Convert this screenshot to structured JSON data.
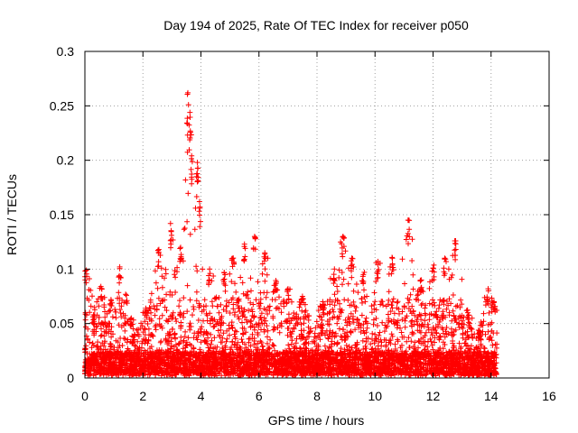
{
  "chart_data": {
    "type": "scatter",
    "title": "Day 194 of 2025, Rate Of TEC Index for receiver p050",
    "xlabel": "GPS time / hours",
    "ylabel": "ROTI / TECUs",
    "xlim": [
      0,
      16
    ],
    "ylim": [
      0,
      0.3
    ],
    "x_ticks": [
      "0",
      "2",
      "4",
      "6",
      "8",
      "10",
      "12",
      "14",
      "16"
    ],
    "y_ticks": [
      "0",
      "0.05",
      "0.1",
      "0.15",
      "0.2",
      "0.25",
      "0.3"
    ],
    "grid": true,
    "marker": "+",
    "color": "#ff0000",
    "data_extent_hours": [
      0,
      14.2
    ],
    "peaks": [
      {
        "x": 0.05,
        "y": 0.099
      },
      {
        "x": 0.3,
        "y": 0.058
      },
      {
        "x": 0.55,
        "y": 0.084
      },
      {
        "x": 0.9,
        "y": 0.072
      },
      {
        "x": 1.2,
        "y": 0.102
      },
      {
        "x": 1.6,
        "y": 0.055
      },
      {
        "x": 2.1,
        "y": 0.064
      },
      {
        "x": 2.55,
        "y": 0.118
      },
      {
        "x": 2.95,
        "y": 0.142
      },
      {
        "x": 3.3,
        "y": 0.12
      },
      {
        "x": 3.55,
        "y": 0.262
      },
      {
        "x": 3.62,
        "y": 0.244
      },
      {
        "x": 3.68,
        "y": 0.204
      },
      {
        "x": 3.88,
        "y": 0.198
      },
      {
        "x": 3.95,
        "y": 0.162
      },
      {
        "x": 4.3,
        "y": 0.1
      },
      {
        "x": 4.8,
        "y": 0.097
      },
      {
        "x": 5.1,
        "y": 0.11
      },
      {
        "x": 5.5,
        "y": 0.123
      },
      {
        "x": 5.85,
        "y": 0.13
      },
      {
        "x": 6.2,
        "y": 0.115
      },
      {
        "x": 6.6,
        "y": 0.088
      },
      {
        "x": 7.0,
        "y": 0.082
      },
      {
        "x": 7.5,
        "y": 0.075
      },
      {
        "x": 8.2,
        "y": 0.07
      },
      {
        "x": 8.6,
        "y": 0.1
      },
      {
        "x": 8.9,
        "y": 0.13
      },
      {
        "x": 9.2,
        "y": 0.11
      },
      {
        "x": 9.6,
        "y": 0.095
      },
      {
        "x": 10.1,
        "y": 0.107
      },
      {
        "x": 10.6,
        "y": 0.11
      },
      {
        "x": 11.15,
        "y": 0.145
      },
      {
        "x": 11.6,
        "y": 0.09
      },
      {
        "x": 12.0,
        "y": 0.101
      },
      {
        "x": 12.4,
        "y": 0.11
      },
      {
        "x": 12.75,
        "y": 0.126
      },
      {
        "x": 13.2,
        "y": 0.06
      },
      {
        "x": 13.6,
        "y": 0.042
      },
      {
        "x": 13.9,
        "y": 0.082
      },
      {
        "x": 14.1,
        "y": 0.07
      }
    ]
  }
}
